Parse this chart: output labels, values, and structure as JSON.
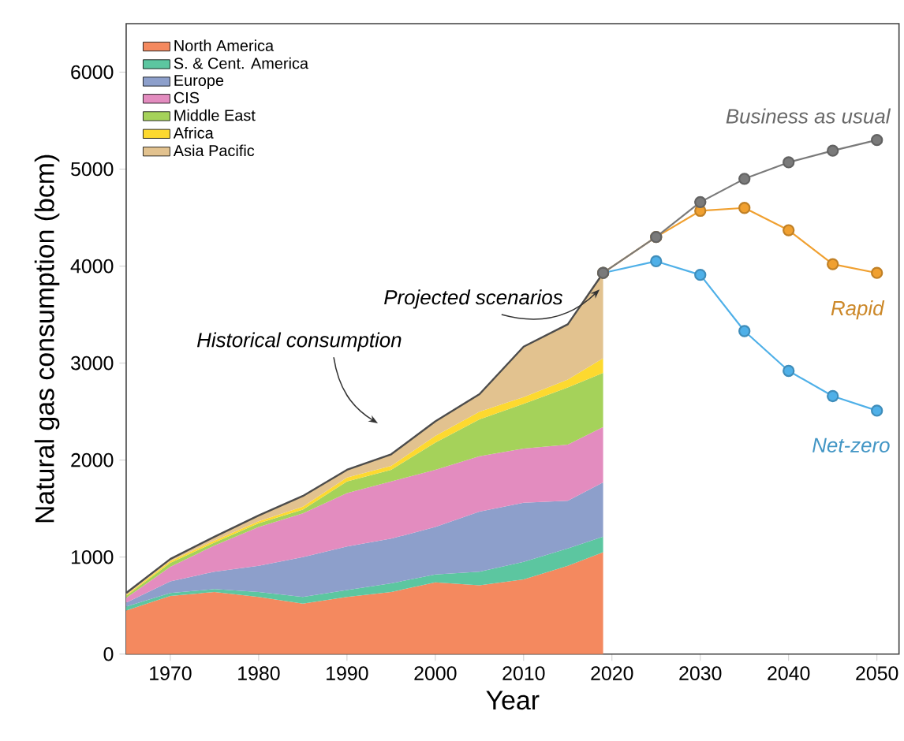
{
  "chart_data": {
    "type": "area",
    "stacked": true,
    "xlabel": "Year",
    "ylabel": "Natural gas consumption (bcm)",
    "xlim": [
      1965,
      2052.5
    ],
    "ylim": [
      0,
      6500
    ],
    "xticks": [
      1970,
      1980,
      1990,
      2000,
      2010,
      2020,
      2030,
      2040,
      2050
    ],
    "yticks": [
      0,
      1000,
      2000,
      3000,
      4000,
      5000,
      6000
    ],
    "legend": "top left",
    "line_style": "solid",
    "grid": false,
    "annotations": [
      "Historical consumption",
      {
        "text": "Projected scenarios",
        "x": 2019,
        "y": 3930
      }
    ],
    "x": [
      1965,
      1970,
      1975,
      1980,
      1985,
      1990,
      1995,
      2000,
      2005,
      2010,
      2015,
      2019
    ],
    "series": [
      {
        "name": "North America",
        "color": "#f4895f",
        "values": [
          450,
          600,
          640,
          590,
          520,
          590,
          640,
          740,
          710,
          770,
          910,
          1050
        ]
      },
      {
        "name": "S. & Cent. America",
        "color": "#5cc6a0",
        "values": [
          40,
          30,
          30,
          50,
          70,
          70,
          90,
          80,
          140,
          180,
          180,
          160
        ]
      },
      {
        "name": "Europe",
        "color": "#8d9fcb",
        "values": [
          40,
          120,
          180,
          270,
          410,
          450,
          460,
          490,
          620,
          610,
          490,
          560
        ]
      },
      {
        "name": "CIS",
        "color": "#e38cbf",
        "values": [
          50,
          150,
          270,
          400,
          450,
          550,
          590,
          590,
          570,
          560,
          580,
          570
        ]
      },
      {
        "name": "Middle East",
        "color": "#a5d25a",
        "values": [
          20,
          40,
          30,
          40,
          40,
          120,
          120,
          280,
          380,
          460,
          590,
          560
        ]
      },
      {
        "name": "Africa",
        "color": "#fdd92f",
        "values": [
          10,
          20,
          20,
          20,
          30,
          40,
          40,
          70,
          80,
          70,
          80,
          150
        ]
      },
      {
        "name": "Asia Pacific",
        "color": "#e2c28f",
        "values": [
          20,
          20,
          40,
          60,
          110,
          80,
          120,
          150,
          180,
          520,
          570,
          880
        ]
      },
      {
        "name": "Business as usual",
        "type": "line",
        "marker": "circle",
        "color": "#7a7a7a",
        "x": [
          2019,
          2025,
          2030,
          2035,
          2040,
          2045,
          2050
        ],
        "values": [
          3930,
          4300,
          4660,
          4900,
          5070,
          5190,
          5300
        ]
      },
      {
        "name": "Rapid",
        "type": "line",
        "marker": "circle",
        "color": "#f0a030",
        "x": [
          2019,
          2025,
          2030,
          2035,
          2040,
          2045,
          2050
        ],
        "values": [
          3930,
          4300,
          4570,
          4600,
          4370,
          4020,
          3930
        ]
      },
      {
        "name": "Net-zero",
        "type": "line",
        "marker": "circle",
        "color": "#4fb0e8",
        "x": [
          2019,
          2025,
          2030,
          2035,
          2040,
          2045,
          2050
        ],
        "values": [
          3930,
          4050,
          3910,
          3330,
          2920,
          2660,
          2510
        ]
      }
    ]
  }
}
